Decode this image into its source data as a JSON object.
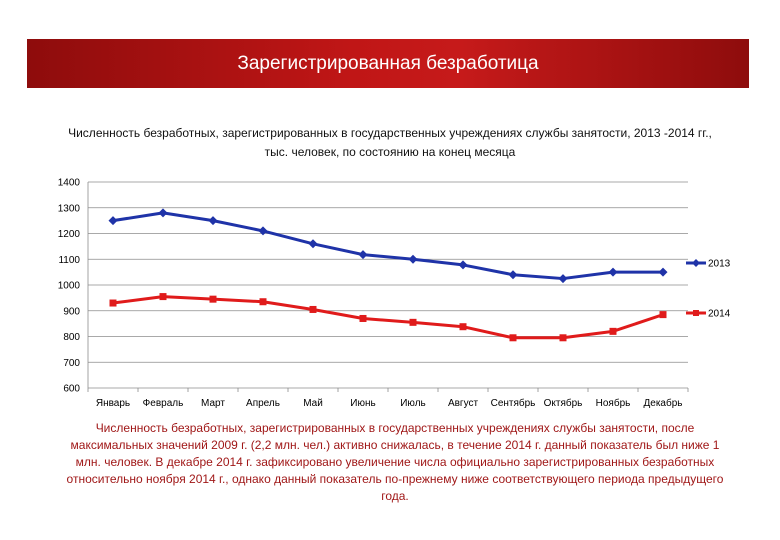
{
  "banner": {
    "title": "Зарегистрированная безработица"
  },
  "chart_title": {
    "line1": "Численность безработных, зарегистрированных в государственных учреждениях службы занятости, 2013 -2014 гг.,",
    "line2": "тыс. человек, по состоянию на конец месяца"
  },
  "chart_data": {
    "type": "line",
    "categories": [
      "Январь",
      "Февраль",
      "Март",
      "Апрель",
      "Май",
      "Июнь",
      "Июль",
      "Август",
      "Сентябрь",
      "Октябрь",
      "Ноябрь",
      "Декабрь"
    ],
    "series": [
      {
        "name": "2013",
        "color": "#1f33a8",
        "marker": "diamond",
        "values": [
          1250,
          1280,
          1250,
          1210,
          1160,
          1118,
          1100,
          1078,
          1040,
          1025,
          1050,
          1050
        ]
      },
      {
        "name": "2014",
        "color": "#e01b1b",
        "marker": "square",
        "values": [
          930,
          955,
          945,
          935,
          905,
          870,
          855,
          838,
          795,
          795,
          820,
          885
        ]
      }
    ],
    "ylim": [
      600,
      1400
    ],
    "yticks": [
      600,
      700,
      800,
      900,
      1000,
      1100,
      1200,
      1300,
      1400
    ],
    "grid": true,
    "legend": "right"
  },
  "caption": "Численность безработных, зарегистрированных в государственных учреждениях службы занятости, после максимальных значений 2009 г. (2,2 млн. чел.) активно снижалась, в течение 2014 г. данный показатель был ниже 1 млн. человек. В декабре 2014 г. зафиксировано увеличение числа официально зарегистрированных безработных относительно ноября 2014 г., однако данный показатель по-прежнему ниже соответствующего периода предыдущего года."
}
